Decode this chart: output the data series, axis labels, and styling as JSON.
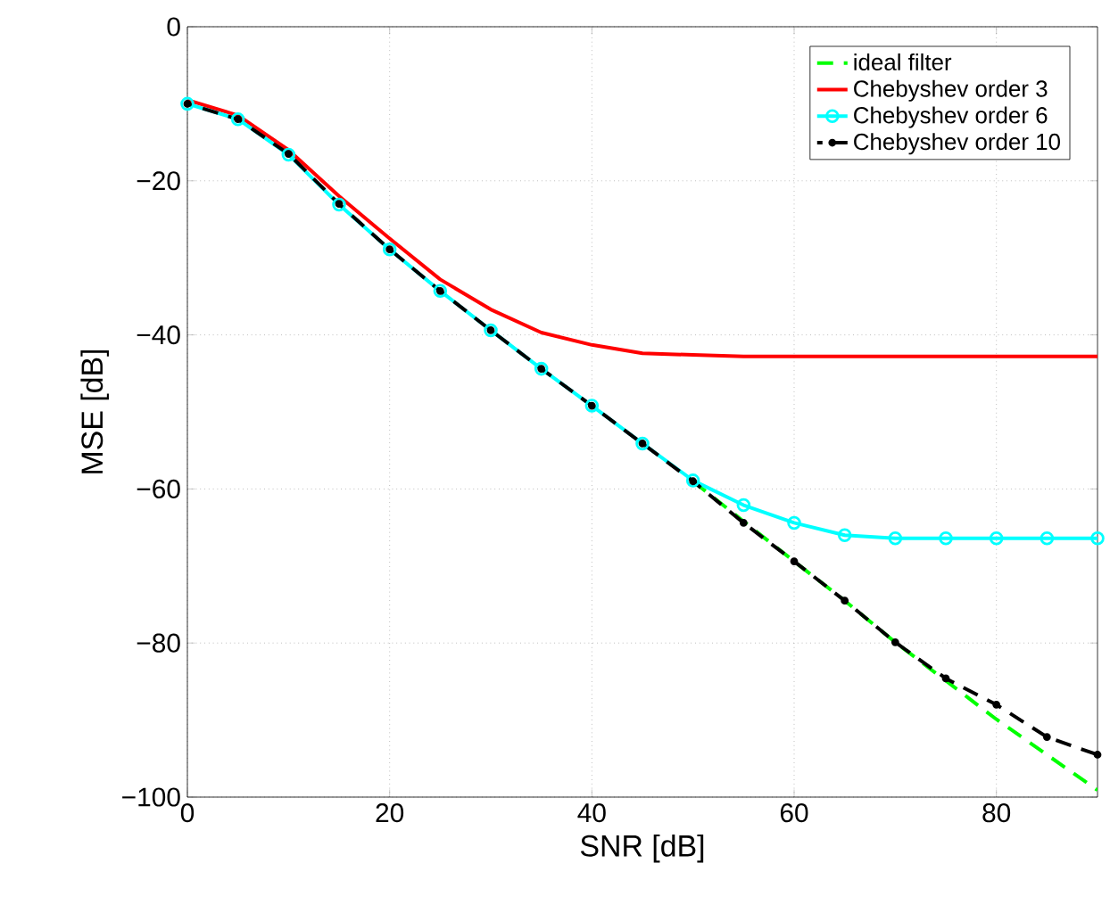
{
  "chart_data": {
    "type": "line",
    "xlabel": "SNR [dB]",
    "ylabel": "MSE [dB]",
    "x": [
      0,
      5,
      10,
      15,
      20,
      25,
      30,
      35,
      40,
      45,
      50,
      55,
      60,
      65,
      70,
      75,
      80,
      85,
      90
    ],
    "series": [
      {
        "name": "ideal filter",
        "color": "#00ff00",
        "line_style": "dashed",
        "marker": "none",
        "values": [
          null,
          null,
          null,
          null,
          null,
          null,
          null,
          null,
          null,
          null,
          -59,
          -64.2,
          -69.4,
          -74.5,
          -79.9,
          -84.9,
          -89.9,
          -94.5,
          -99.1
        ]
      },
      {
        "name": "Chebyshev order 3",
        "color": "#ff0000",
        "line_style": "solid",
        "marker": "none",
        "values": [
          -9.5,
          -11.5,
          -16,
          -22,
          -27.5,
          -32.8,
          -36.7,
          -39.7,
          -41.3,
          -42.4,
          -42.6,
          -42.8,
          -42.8,
          -42.8,
          -42.8,
          -42.8,
          -42.8,
          -42.8,
          -42.8
        ]
      },
      {
        "name": "Chebyshev order 6",
        "color": "#00ffff",
        "line_style": "solid",
        "marker": "circle",
        "values": [
          -10,
          -12,
          -16.6,
          -23.1,
          -28.9,
          -34.3,
          -39.4,
          -44.4,
          -49.2,
          -54.1,
          -58.9,
          -62.1,
          -64.4,
          -66,
          -66.4,
          -66.4,
          -66.4,
          -66.4,
          -66.4
        ]
      },
      {
        "name": "Chebyshev order 10",
        "color": "#000000",
        "line_style": "dashed",
        "marker": "dot",
        "values": [
          -10,
          -12,
          -16.5,
          -23,
          -28.9,
          -34.3,
          -39.4,
          -44.4,
          -49.2,
          -54.1,
          -59,
          -64.4,
          -69.4,
          -74.5,
          -79.9,
          -84.6,
          -88,
          -92.2,
          -94.5
        ]
      }
    ],
    "xlim": [
      0,
      90
    ],
    "ylim": [
      -100,
      0
    ],
    "xticks": [
      0,
      20,
      40,
      60,
      80
    ],
    "yticks": [
      0,
      {
        "value": -20,
        "label": "−20"
      },
      {
        "value": -40,
        "label": "−40"
      },
      {
        "value": -60,
        "label": "−60"
      },
      {
        "value": -80,
        "label": "−80"
      },
      {
        "value": -100,
        "label": "−100"
      }
    ],
    "grid": true,
    "legend": "top right"
  }
}
